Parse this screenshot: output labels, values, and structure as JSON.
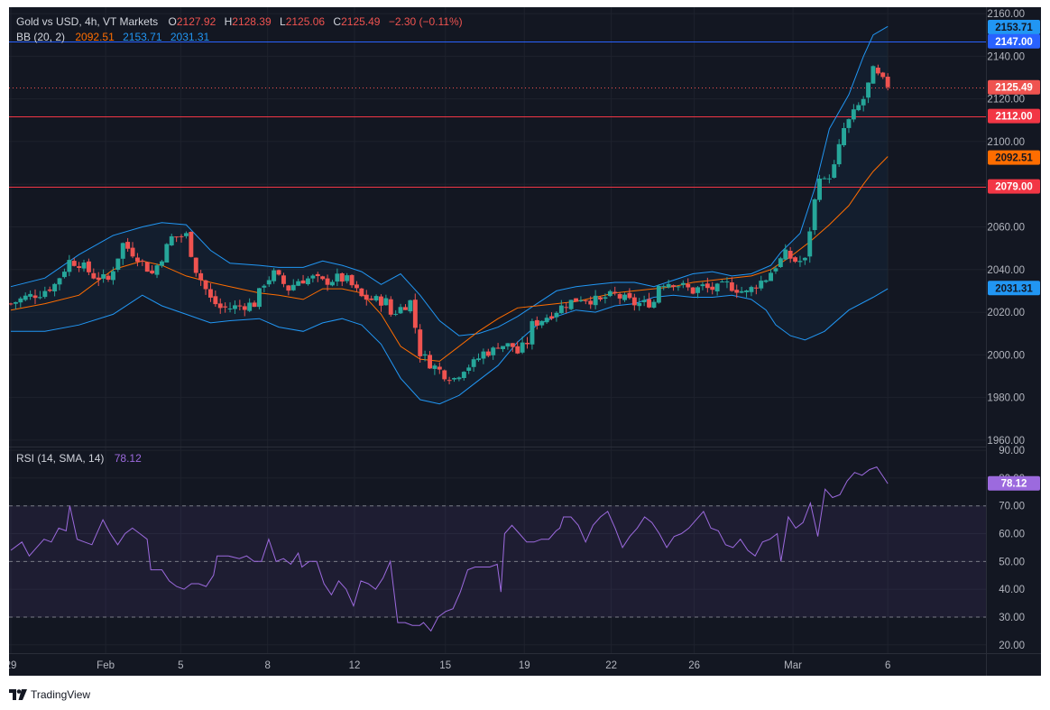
{
  "header": {
    "symbol": "Gold vs USD, 4h, VT Markets",
    "o_label": "O",
    "o_value": "2127.92",
    "h_label": "H",
    "h_value": "2128.39",
    "l_label": "L",
    "l_value": "2125.06",
    "c_label": "C",
    "c_value": "2125.49",
    "change": "−2.30 (−0.11%)"
  },
  "bb_legend": {
    "label": "BB (20, 2)",
    "basis": "2092.51",
    "upper": "2153.71",
    "lower": "2031.31"
  },
  "rsi_legend": {
    "label": "RSI (14, SMA, 14)",
    "value": "78.12"
  },
  "footer": {
    "brand": "TradingView"
  },
  "colors": {
    "background": "#131722",
    "up": "#26a69a",
    "down": "#ef5350",
    "bb_basis": "#ff6d00",
    "bb_band": "#2196f3",
    "hline_blue": "#2962ff",
    "hline_red": "#f23645",
    "rsi": "#9c6ade"
  },
  "chart_data": [
    {
      "type": "candlestick",
      "symbol": "XAUUSD",
      "timeframe": "4h",
      "ylim": [
        1957,
        2163
      ],
      "y_ticks": [
        "2160.00",
        "2140.00",
        "2120.00",
        "2100.00",
        "2080.00",
        "2060.00",
        "2040.00",
        "2020.00",
        "2000.00",
        "1980.00",
        "1960.00"
      ],
      "x_ticks": [
        "29",
        "Feb",
        "5",
        "8",
        "12",
        "15",
        "19",
        "22",
        "26",
        "Mar",
        "6"
      ],
      "close_path": [
        [
          0,
          2024
        ],
        [
          3,
          2027
        ],
        [
          6,
          2029
        ],
        [
          9,
          2033
        ],
        [
          12,
          2044
        ],
        [
          14,
          2043
        ],
        [
          17,
          2037
        ],
        [
          20,
          2035
        ],
        [
          23,
          2052
        ],
        [
          26,
          2046
        ],
        [
          29,
          2038
        ],
        [
          31,
          2046
        ],
        [
          33,
          2055
        ],
        [
          36,
          2056
        ],
        [
          38,
          2040
        ],
        [
          41,
          2026
        ],
        [
          43,
          2022
        ],
        [
          45,
          2022
        ],
        [
          47,
          2023
        ],
        [
          50,
          2024
        ],
        [
          52,
          2034
        ],
        [
          54,
          2038
        ],
        [
          57,
          2031
        ],
        [
          59,
          2035
        ],
        [
          62,
          2036
        ],
        [
          64,
          2034
        ],
        [
          67,
          2036
        ],
        [
          69,
          2035
        ],
        [
          72,
          2027
        ],
        [
          74,
          2026
        ],
        [
          77,
          2025
        ],
        [
          78,
          2019
        ],
        [
          80,
          2022
        ],
        [
          82,
          2025
        ],
        [
          84,
          2001
        ],
        [
          86,
          1996
        ],
        [
          89,
          1991
        ],
        [
          91,
          1989
        ],
        [
          93,
          1994
        ],
        [
          95,
          1996
        ],
        [
          97,
          2001
        ],
        [
          99,
          2002
        ],
        [
          100,
          2005
        ],
        [
          103,
          2004
        ],
        [
          104,
          2001
        ],
        [
          106,
          2006
        ],
        [
          107,
          2014
        ],
        [
          110,
          2018
        ],
        [
          112,
          2021
        ],
        [
          114,
          2024
        ],
        [
          117,
          2027
        ],
        [
          119,
          2026
        ],
        [
          121,
          2025
        ],
        [
          122,
          2027
        ],
        [
          124,
          2028
        ],
        [
          126,
          2026
        ],
        [
          128,
          2024
        ],
        [
          130,
          2024
        ],
        [
          132,
          2025
        ],
        [
          133,
          2033
        ],
        [
          134,
          2034
        ],
        [
          136,
          2034
        ],
        [
          138,
          2032
        ],
        [
          140,
          2030
        ],
        [
          142,
          2032
        ],
        [
          143,
          2031
        ],
        [
          145,
          2031
        ],
        [
          147,
          2033
        ],
        [
          149,
          2031
        ],
        [
          151,
          2029
        ],
        [
          153,
          2033
        ],
        [
          155,
          2036
        ],
        [
          157,
          2042
        ],
        [
          159,
          2047
        ],
        [
          161,
          2044
        ],
        [
          163,
          2044
        ],
        [
          164,
          2059
        ],
        [
          166,
          2085
        ],
        [
          167,
          2081
        ],
        [
          169,
          2088
        ],
        [
          171,
          2106
        ],
        [
          173,
          2113
        ],
        [
          175,
          2120
        ],
        [
          177,
          2133
        ],
        [
          179,
          2128
        ],
        [
          180,
          2125
        ]
      ],
      "bb_upper": [
        [
          0,
          2032
        ],
        [
          7,
          2036
        ],
        [
          14,
          2047
        ],
        [
          21,
          2056
        ],
        [
          27,
          2060
        ],
        [
          31,
          2062
        ],
        [
          36,
          2061
        ],
        [
          41,
          2049
        ],
        [
          45,
          2043
        ],
        [
          51,
          2042
        ],
        [
          55,
          2041
        ],
        [
          60,
          2041
        ],
        [
          64,
          2044
        ],
        [
          68,
          2042
        ],
        [
          72,
          2039
        ],
        [
          76,
          2033
        ],
        [
          80,
          2038
        ],
        [
          84,
          2028
        ],
        [
          88,
          2016
        ],
        [
          92,
          2009
        ],
        [
          96,
          2010
        ],
        [
          100,
          2013
        ],
        [
          104,
          2018
        ],
        [
          108,
          2024
        ],
        [
          112,
          2030
        ],
        [
          116,
          2032
        ],
        [
          120,
          2033
        ],
        [
          124,
          2034
        ],
        [
          128,
          2034
        ],
        [
          132,
          2032
        ],
        [
          136,
          2035
        ],
        [
          140,
          2038
        ],
        [
          144,
          2039
        ],
        [
          148,
          2037
        ],
        [
          152,
          2038
        ],
        [
          156,
          2042
        ],
        [
          158,
          2048
        ],
        [
          162,
          2057
        ],
        [
          165,
          2078
        ],
        [
          168,
          2106
        ],
        [
          172,
          2122
        ],
        [
          175,
          2140
        ],
        [
          177,
          2150
        ],
        [
          180,
          2154
        ]
      ],
      "bb_basis": [
        [
          0,
          2021
        ],
        [
          7,
          2024
        ],
        [
          14,
          2028
        ],
        [
          21,
          2040
        ],
        [
          27,
          2044
        ],
        [
          31,
          2042
        ],
        [
          36,
          2037
        ],
        [
          41,
          2034
        ],
        [
          45,
          2032
        ],
        [
          51,
          2029
        ],
        [
          55,
          2028
        ],
        [
          60,
          2026
        ],
        [
          64,
          2031
        ],
        [
          68,
          2031
        ],
        [
          72,
          2029
        ],
        [
          76,
          2019
        ],
        [
          80,
          2004
        ],
        [
          84,
          1998
        ],
        [
          88,
          1997
        ],
        [
          92,
          2004
        ],
        [
          96,
          2011
        ],
        [
          100,
          2017
        ],
        [
          104,
          2022
        ],
        [
          108,
          2023
        ],
        [
          112,
          2024
        ],
        [
          116,
          2025
        ],
        [
          120,
          2027
        ],
        [
          124,
          2029
        ],
        [
          128,
          2030
        ],
        [
          132,
          2031
        ],
        [
          136,
          2032
        ],
        [
          140,
          2034
        ],
        [
          144,
          2035
        ],
        [
          148,
          2036
        ],
        [
          152,
          2037
        ],
        [
          156,
          2040
        ],
        [
          160,
          2046
        ],
        [
          164,
          2053
        ],
        [
          168,
          2061
        ],
        [
          172,
          2070
        ],
        [
          175,
          2080
        ],
        [
          177,
          2086
        ],
        [
          180,
          2093
        ]
      ],
      "bb_lower": [
        [
          0,
          2011
        ],
        [
          7,
          2011
        ],
        [
          14,
          2014
        ],
        [
          21,
          2019
        ],
        [
          27,
          2028
        ],
        [
          31,
          2023
        ],
        [
          36,
          2019
        ],
        [
          41,
          2015
        ],
        [
          45,
          2016
        ],
        [
          51,
          2017
        ],
        [
          55,
          2013
        ],
        [
          60,
          2011
        ],
        [
          64,
          2015
        ],
        [
          68,
          2017
        ],
        [
          72,
          2014
        ],
        [
          76,
          2005
        ],
        [
          80,
          1989
        ],
        [
          84,
          1979
        ],
        [
          88,
          1977
        ],
        [
          92,
          1981
        ],
        [
          96,
          1988
        ],
        [
          100,
          1995
        ],
        [
          104,
          2006
        ],
        [
          108,
          2014
        ],
        [
          112,
          2018
        ],
        [
          116,
          2021
        ],
        [
          120,
          2020
        ],
        [
          124,
          2023
        ],
        [
          128,
          2024
        ],
        [
          132,
          2027
        ],
        [
          136,
          2028
        ],
        [
          140,
          2027
        ],
        [
          144,
          2027
        ],
        [
          148,
          2028
        ],
        [
          152,
          2026
        ],
        [
          155,
          2021
        ],
        [
          157,
          2014
        ],
        [
          160,
          2009
        ],
        [
          163,
          2007
        ],
        [
          167,
          2011
        ],
        [
          172,
          2021
        ],
        [
          177,
          2027
        ],
        [
          180,
          2031
        ]
      ],
      "horizontal_levels": [
        {
          "value": 2147.0,
          "label": "2147.00",
          "color": "#2962ff"
        },
        {
          "value": 2112.0,
          "label": "2112.00",
          "color": "#f23645"
        },
        {
          "value": 2079.0,
          "label": "2079.00",
          "color": "#f23645"
        }
      ],
      "price_badges": [
        {
          "value": 2153.71,
          "label": "2153.71",
          "color": "#2196f3"
        },
        {
          "value": 2125.49,
          "label": "2125.49",
          "color": "#ef5350"
        },
        {
          "value": 2092.51,
          "label": "2092.51",
          "color": "#ff6d00"
        },
        {
          "value": 2031.31,
          "label": "2031.31",
          "color": "#2196f3"
        }
      ],
      "last_price": 2125.49
    },
    {
      "type": "line",
      "indicator": "RSI",
      "ylim": [
        17,
        91
      ],
      "y_ticks": [
        "90.00",
        "80.00",
        "70.00",
        "60.00",
        "50.00",
        "40.00",
        "30.00",
        "20.00"
      ],
      "levels": [
        70,
        50,
        30
      ],
      "values": [
        [
          0,
          54
        ],
        [
          3,
          57
        ],
        [
          5,
          52
        ],
        [
          7,
          55
        ],
        [
          9,
          58
        ],
        [
          11,
          57
        ],
        [
          13,
          62
        ],
        [
          15,
          61
        ],
        [
          16,
          70
        ],
        [
          18,
          58
        ],
        [
          20,
          57
        ],
        [
          22,
          56
        ],
        [
          23,
          59
        ],
        [
          25,
          65
        ],
        [
          27,
          60
        ],
        [
          29,
          56
        ],
        [
          31,
          60
        ],
        [
          33,
          62
        ],
        [
          35,
          60
        ],
        [
          37,
          58
        ],
        [
          38,
          47
        ],
        [
          41,
          47
        ],
        [
          43,
          43
        ],
        [
          45,
          41
        ],
        [
          47,
          40
        ],
        [
          49,
          42
        ],
        [
          51,
          42
        ],
        [
          53,
          41
        ],
        [
          55,
          45
        ],
        [
          56,
          52
        ],
        [
          59,
          52
        ],
        [
          62,
          51
        ],
        [
          64,
          52
        ],
        [
          66,
          50
        ],
        [
          68,
          50
        ],
        [
          70,
          58
        ],
        [
          72,
          50
        ],
        [
          74,
          51
        ],
        [
          76,
          49
        ],
        [
          78,
          53
        ],
        [
          79,
          48
        ],
        [
          81,
          50
        ],
        [
          83,
          50
        ],
        [
          85,
          42
        ],
        [
          87,
          38
        ],
        [
          89,
          43
        ],
        [
          91,
          40
        ],
        [
          93,
          34
        ],
        [
          95,
          43
        ],
        [
          97,
          42
        ],
        [
          99,
          40
        ],
        [
          101,
          44
        ],
        [
          103,
          50
        ],
        [
          105,
          28
        ],
        [
          107,
          28
        ],
        [
          109,
          27
        ],
        [
          111,
          27
        ],
        [
          112,
          28
        ],
        [
          114,
          25
        ],
        [
          116,
          30
        ],
        [
          118,
          32
        ],
        [
          120,
          33
        ],
        [
          122,
          39
        ],
        [
          124,
          47
        ],
        [
          126,
          48
        ],
        [
          128,
          48
        ],
        [
          130,
          48
        ],
        [
          132,
          49
        ],
        [
          133,
          39
        ],
        [
          134,
          60
        ],
        [
          136,
          63
        ],
        [
          138,
          60
        ],
        [
          140,
          57
        ],
        [
          142,
          57
        ],
        [
          144,
          58
        ],
        [
          146,
          58
        ],
        [
          148,
          61
        ],
        [
          149,
          62
        ],
        [
          150,
          66
        ],
        [
          152,
          66
        ],
        [
          154,
          63
        ],
        [
          156,
          57
        ],
        [
          158,
          63
        ],
        [
          160,
          66
        ],
        [
          162,
          68
        ],
        [
          164,
          62
        ],
        [
          166,
          55
        ],
        [
          168,
          59
        ],
        [
          170,
          62
        ],
        [
          172,
          66
        ],
        [
          174,
          64
        ],
        [
          176,
          60
        ],
        [
          178,
          55
        ],
        [
          180,
          59
        ],
        [
          182,
          60
        ],
        [
          184,
          62
        ],
        [
          186,
          65
        ],
        [
          188,
          68
        ],
        [
          190,
          62
        ],
        [
          192,
          61
        ],
        [
          194,
          56
        ],
        [
          196,
          55
        ],
        [
          198,
          58
        ],
        [
          200,
          54
        ],
        [
          202,
          52
        ],
        [
          204,
          57
        ],
        [
          206,
          58
        ],
        [
          208,
          60
        ],
        [
          209,
          50
        ],
        [
          211,
          66
        ],
        [
          213,
          62
        ],
        [
          215,
          64
        ],
        [
          217,
          71
        ],
        [
          219,
          59
        ],
        [
          221,
          76
        ],
        [
          223,
          73
        ],
        [
          225,
          74
        ],
        [
          227,
          79
        ],
        [
          229,
          82
        ],
        [
          231,
          81
        ],
        [
          233,
          83
        ],
        [
          235,
          84
        ],
        [
          237,
          80
        ],
        [
          238,
          78
        ]
      ],
      "last_value": 78.12
    }
  ]
}
